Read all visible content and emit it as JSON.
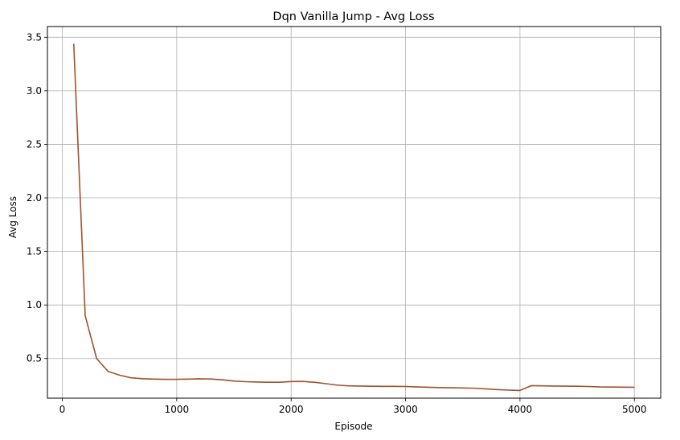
{
  "chart_data": {
    "type": "line",
    "title": "Dqn Vanilla Jump - Avg Loss",
    "xlabel": "Episode",
    "ylabel": "Avg Loss",
    "xlim": [
      -130,
      5230
    ],
    "ylim": [
      0.13,
      3.6
    ],
    "xticks": [
      0,
      1000,
      2000,
      3000,
      4000,
      5000
    ],
    "yticks": [
      0.5,
      1.0,
      1.5,
      2.0,
      2.5,
      3.0,
      3.5
    ],
    "xtick_labels": [
      "0",
      "1000",
      "2000",
      "3000",
      "4000",
      "5000"
    ],
    "ytick_labels": [
      "0.5",
      "1.0",
      "1.5",
      "2.0",
      "2.5",
      "3.0",
      "3.5"
    ],
    "grid": true,
    "line_color": "#a0522d",
    "grid_color": "#b0b0b0",
    "series": [
      {
        "x": [
          100,
          200,
          300,
          400,
          500,
          600,
          700,
          800,
          900,
          1000,
          1100,
          1200,
          1300,
          1400,
          1500,
          1600,
          1700,
          1800,
          1900,
          2000,
          2100,
          2200,
          2300,
          2400,
          2500,
          2600,
          2700,
          2800,
          2900,
          3000,
          3100,
          3200,
          3300,
          3400,
          3500,
          3600,
          3700,
          3800,
          3900,
          4000,
          4100,
          4200,
          4300,
          4400,
          4500,
          4600,
          4700,
          4800,
          4900,
          5000
        ],
        "values": [
          3.44,
          0.9,
          0.5,
          0.38,
          0.345,
          0.32,
          0.312,
          0.308,
          0.306,
          0.306,
          0.308,
          0.311,
          0.309,
          0.301,
          0.29,
          0.284,
          0.281,
          0.279,
          0.279,
          0.285,
          0.286,
          0.279,
          0.266,
          0.252,
          0.245,
          0.243,
          0.241,
          0.24,
          0.24,
          0.239,
          0.235,
          0.232,
          0.229,
          0.227,
          0.225,
          0.223,
          0.217,
          0.21,
          0.205,
          0.202,
          0.247,
          0.245,
          0.243,
          0.242,
          0.241,
          0.239,
          0.235,
          0.234,
          0.233,
          0.232
        ]
      }
    ]
  }
}
